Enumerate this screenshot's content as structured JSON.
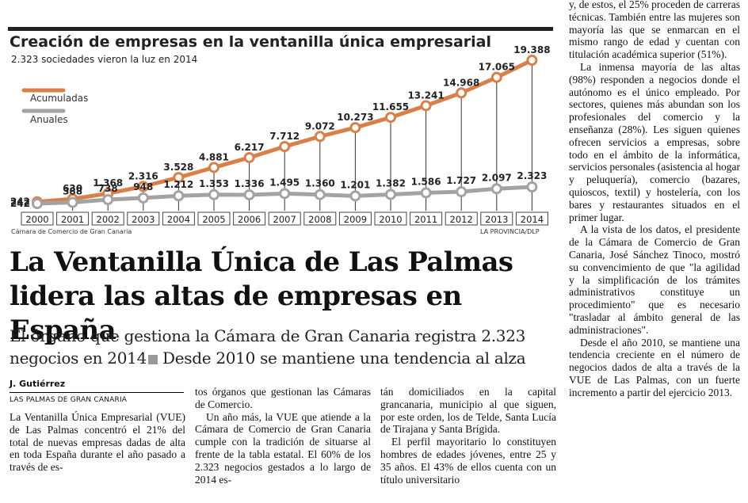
{
  "chart": {
    "title": "Creación de empresas en la ventanilla única empresarial",
    "subtitle": "2.323 sociedades vieron la luz en 2014",
    "legend_accum": "Acumuladas",
    "legend_annual": "Anuales",
    "source_left": "Cámara de Comercio de Gran Canaria",
    "source_right": "LA PROVINCIA/DLP",
    "colors": {
      "accumulated": "#d9804a",
      "annual": "#a3a3a3"
    }
  },
  "chart_data": {
    "type": "line",
    "x": [
      "2000",
      "2001",
      "2002",
      "2003",
      "2004",
      "2005",
      "2006",
      "2007",
      "2008",
      "2009",
      "2010",
      "2011",
      "2012",
      "2013",
      "2014"
    ],
    "series": [
      {
        "name": "Acumuladas",
        "values": [
          242,
          630,
          1368,
          2316,
          3528,
          4881,
          6217,
          7712,
          9072,
          10273,
          11655,
          13241,
          14968,
          17065,
          19388
        ],
        "labels": [
          "242",
          "630",
          "1.368",
          "2.316",
          "3.528",
          "4.881",
          "6.217",
          "7.712",
          "9.072",
          "10.273",
          "11.655",
          "13.241",
          "14.968",
          "17.065",
          "19.388"
        ]
      },
      {
        "name": "Anuales",
        "values": [
          242,
          388,
          738,
          948,
          1212,
          1353,
          1336,
          1495,
          1360,
          1201,
          1382,
          1586,
          1727,
          2097,
          2323
        ],
        "labels": [
          "242",
          "388",
          "738",
          "948",
          "1.212",
          "1.353",
          "1.336",
          "1.495",
          "1.360",
          "1.201",
          "1.382",
          "1.586",
          "1.727",
          "2.097",
          "2.323"
        ]
      }
    ],
    "title": "Creación de empresas en la ventanilla única empresarial",
    "subtitle": "2.323 sociedades vieron la luz en 2014",
    "legend": "top-left"
  },
  "article": {
    "headline": "La Ventanilla Única de Las Palmas lidera las altas de empresas en España",
    "deck_1": "El órgano que gestiona la Cámara de Gran Canaria registra 2.323 negocios en 2014",
    "deck_2": "Desde 2010 se mantiene una tendencia al alza",
    "author": "J. Gutiérrez",
    "location": "LAS PALMAS DE GRAN CANARIA",
    "paragraphs": [
      "La Ventanilla Única Empresarial (VUE) de Las Palmas concentró el 21% del total de nuevas empresas dadas de alta en toda España durante el año pasado a través de estos órganos que gestionan las Cámaras de Comercio.",
      "Un año más, la VUE que atiende a la Cámara de Comercio de Gran Canaria cumple con la tradición de situarse al frente de la tabla estatal. El 60% de los 2.323 negocios gestados a lo largo de 2014 están domiciliados en la capital grancanaria, municipio al que siguen, por este orden, los de Telde, Santa Lucía de Tirajana y Santa Brígida.",
      "El perfil mayoritario lo constituyen hombres de edades jóvenes, entre 25 y 35 años. El 43% de ellos cuenta con un título universitario y, de estos, el 25% proceden de carreras técnicas. También entre las mujeres son mayoría las que se enmarcan en el mismo rango de edad y cuentan con titulación académica superior (51%).",
      "La inmensa mayoría de las altas (98%) responden a negocios donde el autónomo es el único empleado. Por sectores, quienes más abundan son los profesionales del comercio y la enseñanza (28%). Les siguen quienes ofrecen servicios a empresas, sobre todo en el ámbito de la informática, servicios personales (asistencia al hogar y peluquería), comercio (bazares, quioscos, textil) y hostelería, con los bares y restaurantes situados en el primer lugar.",
      "A la vista de los datos, el presidente de la Cámara de Comercio de Gran Canaria, José Sánchez Tinoco, mostró su convencimiento de que \"la agilidad y la simplificación de los trámites administrativos constituye un procedimiento\" que es necesario \"trasladar al ámbito general de las administraciones\".",
      "Desde el año 2010, se mantiene una tendencia creciente en el número de negocios dados de alta a través de la VUE de Las Palmas, con un fuerte incremento a partir del ejercicio 2013."
    ],
    "col1": "La Ventanilla Única Empresarial (VUE) de Las Palmas concentró el 21% del total de nuevas empresas dadas de alta en toda España durante el año pasado a través de es-",
    "col2a": "tos órganos que gestionan las Cámaras de Comercio.",
    "col2b": "Un año más, la VUE que atiende a la Cámara de Comercio de Gran Canaria cumple con la tradición de situarse al frente de la tabla estatal. El 60% de los 2.323 negocios gestados a lo largo de 2014 es-",
    "col3a": "tán domiciliados en la capital grancanaria, municipio al que siguen, por este orden, los de Telde, Santa Lucía de Tirajana y Santa Brígida.",
    "col3b": "El perfil mayoritario lo constituyen hombres de edades jóvenes, entre 25 y 35 años. El 43% de ellos cuenta con un título universitario",
    "col4a": "y, de estos, el 25% proceden de carreras técnicas. También entre las mujeres son mayoría las que se enmarcan en el mismo rango de edad y cuentan con titulación académica superior (51%).",
    "col4b": "La inmensa mayoría de las altas (98%) responden a negocios donde el autónomo es el único empleado. Por sectores, quienes más abundan son los profesionales del comercio y la enseñanza (28%). Les siguen quienes ofrecen servicios a empresas, sobre todo en el ámbito de la informática, servicios personales (asistencia al hogar y peluquería), comercio (bazares, quioscos, textil) y hostelería, con los bares y restaurantes situados en el primer lugar.",
    "col4c": "A la vista de los datos, el presidente de la Cámara de Comercio de Gran Canaria, José Sánchez Tinoco, mostró su convencimiento de que \"la agilidad y la simplificación de los trámites administrativos constituye un procedimiento\" que es necesario \"trasladar al ámbito general de las administraciones\".",
    "col4d": "Desde el año 2010, se mantiene una tendencia creciente en el número de negocios dados de alta a través de la VUE de Las Palmas, con un fuerte incremento a partir del ejercicio 2013."
  }
}
